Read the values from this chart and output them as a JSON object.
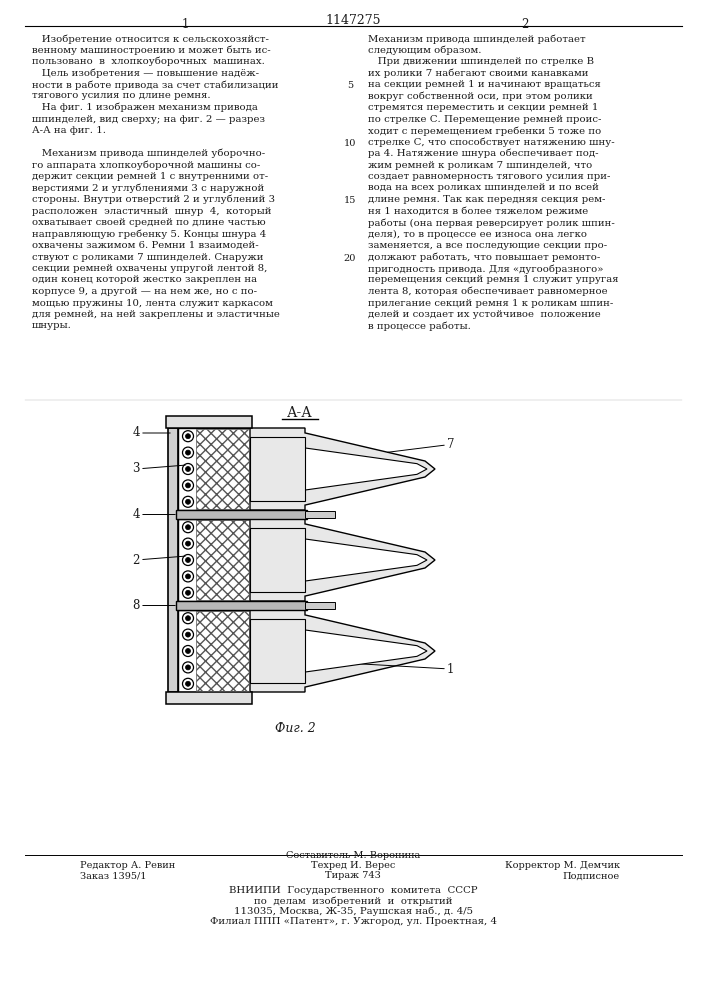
{
  "patent_number": "1147275",
  "col1_header": "1",
  "col2_header": "2",
  "col1_text_lines": [
    "   Изобретение относится к сельскохозяйст-",
    "венному машиностроению и может быть ис-",
    "пользовано  в  хлопкоуборочных  машинах.",
    "   Цель изобретения — повышение надёж-",
    "ности в работе привода за счет стабилизации",
    "тягового усилия по длине ремня.",
    "   На фиг. 1 изображен механизм привода",
    "шпинделей, вид сверху; на фиг. 2 — разрез",
    "А-А на фиг. 1.",
    "",
    "   Механизм привода шпинделей уборочно-",
    "го аппарата хлопкоуборочной машины со-",
    "держит секции ремней 1 с внутренними от-",
    "верстиями 2 и углублениями 3 с наружной",
    "стороны. Внутри отверстий 2 и углублений 3",
    "расположен  эластичный  шнур  4,  который",
    "охватывает своей средней по длине частью",
    "направляющую гребенку 5. Концы шнура 4",
    "охвачены зажимом 6. Ремни 1 взаимодей-",
    "ствуют с роликами 7 шпинделей. Снаружи",
    "секции ремней охвачены упругой лентой 8,",
    "один конец которой жестко закреплен на",
    "корпусе 9, а другой — на нем же, но с по-",
    "мощью пружины 10, лента служит каркасом",
    "для ремней, на ней закреплены и эластичные",
    "шнуры."
  ],
  "col2_text_lines": [
    "Механизм привода шпинделей работает",
    "следующим образом.",
    "   При движении шпинделей по стрелке В",
    "их ролики 7 набегают своими канавками",
    "на секции ремней 1 и начинают вращаться",
    "вокруг собственной оси, при этом ролики",
    "стремятся переместить и секции ремней 1",
    "по стрелке С. Перемещение ремней проис-",
    "ходит с перемещением гребенки 5 тоже по",
    "стрелке С, что способствует натяжению шну-",
    "ра 4. Натяжение шнура обеспечивает под-",
    "жим ремней к роликам 7 шпинделей, что",
    "создает равномерность тягового усилия при-",
    "вода на всех роликах шпинделей и по всей",
    "длине ремня. Так как передняя секция рем-",
    "ня 1 находится в более тяжелом режиме",
    "работы (она первая реверсирует ролик шпин-",
    "деля), то в процессе ее износа она легко",
    "заменяется, а все последующие секции про-",
    "должают работать, что повышает ремонто-",
    "пригодность привода. Для «дугообразного»",
    "перемещения секций ремня 1 служит упругая",
    "лента 8, которая обеспечивает равномерное",
    "прилегание секций ремня 1 к роликам шпин-",
    "делей и создает их устойчивое  положение",
    "в процессе работы."
  ],
  "line_number_rows": [
    4,
    9,
    14,
    19
  ],
  "line_number_values": [
    5,
    10,
    15,
    20
  ],
  "fig_section_label": "А-А",
  "fig_caption": "Фиг. 2",
  "footer_left_line1": "Редактор А. Ревин",
  "footer_left_line2": "Заказ 1395/1",
  "footer_mid_line1": "Составитель М. Воронина",
  "footer_mid_line2": "Техред И. Верес",
  "footer_mid_line3": "Тираж 743",
  "footer_right_line1": "Корректор М. Демчик",
  "footer_right_line2": "Подписное",
  "footer_org_line1": "ВНИИПИ  Государственного  комитета  СССР",
  "footer_org_line2": "по  делам  изобретений  и  открытий",
  "footer_org_line3": "113035, Москва, Ж-35, Раушская наб., д. 4/5",
  "footer_org_line4": "Филиал ППП «Патент», г. Ужгород, ул. Проектная, 4",
  "bg_color": "#ffffff",
  "text_color": "#1a1a1a"
}
